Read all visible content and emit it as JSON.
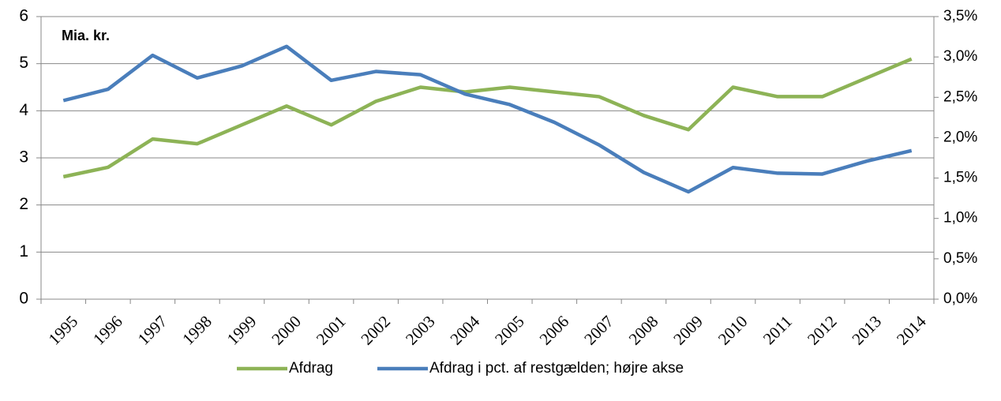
{
  "chart_data": {
    "type": "line",
    "annotation": "Mia. kr.",
    "categories": [
      "1995",
      "1996",
      "1997",
      "1998",
      "1999",
      "2000",
      "2001",
      "2002",
      "2003",
      "2004",
      "2005",
      "2006",
      "2007",
      "2008",
      "2009",
      "2010",
      "2011",
      "2012",
      "2013",
      "2014"
    ],
    "series": [
      {
        "name": "Afdrag",
        "color": "#8db356",
        "values": [
          2.6,
          2.8,
          3.4,
          3.3,
          3.7,
          4.1,
          3.7,
          4.2,
          4.5,
          4.4,
          4.5,
          4.4,
          4.3,
          3.9,
          3.6,
          4.5,
          4.3,
          4.3,
          4.7,
          5.1
        ]
      },
      {
        "name": "Afdrag i pct. af restgælden; højre akse",
        "color": "#4a7ebb",
        "axis": "y2",
        "values": [
          2.46,
          2.6,
          3.02,
          2.74,
          2.89,
          3.13,
          2.71,
          2.82,
          2.78,
          2.54,
          2.41,
          2.19,
          1.91,
          1.57,
          1.33,
          1.63,
          1.56,
          1.55,
          1.71,
          1.84
        ]
      }
    ],
    "ylim": [
      0,
      6
    ],
    "yticks": [
      0,
      1,
      2,
      3,
      4,
      5,
      6
    ],
    "y2lim": [
      0,
      3.5
    ],
    "y2ticks": [
      {
        "value": 0,
        "label": "0,0%"
      },
      {
        "value": 0.5,
        "label": "0,5%"
      },
      {
        "value": 1,
        "label": "1,0%"
      },
      {
        "value": 1.5,
        "label": "1,5%"
      },
      {
        "value": 2,
        "label": "2,0%"
      },
      {
        "value": 2.5,
        "label": "2,5%"
      },
      {
        "value": 3,
        "label": "3,0%"
      },
      {
        "value": 3.5,
        "label": "3,5%"
      }
    ],
    "grid": true,
    "legend": "bottom"
  }
}
